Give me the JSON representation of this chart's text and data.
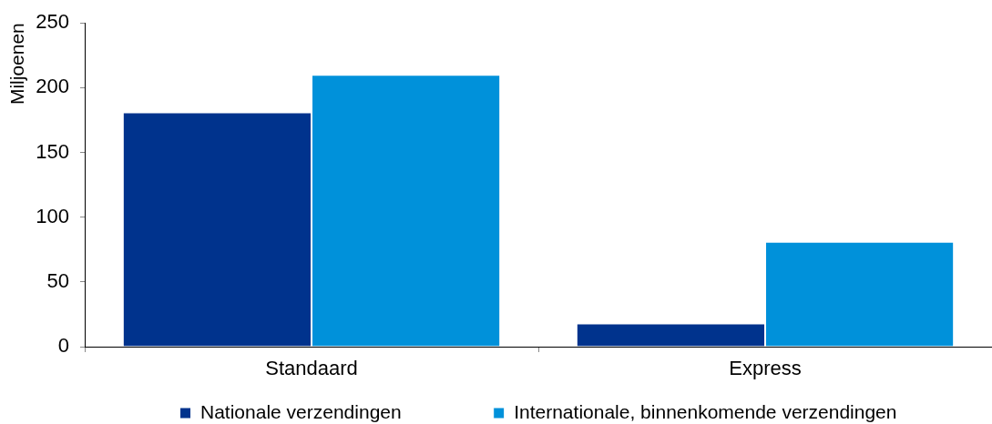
{
  "chart_data": {
    "type": "bar",
    "categories": [
      "Standaard",
      "Express"
    ],
    "ylabel": "Miljoenen",
    "series": [
      {
        "name": "Nationale verzendingen",
        "color": "#00338d",
        "values": [
          181,
          18
        ]
      },
      {
        "name": "Internationale, binnenkomende verzendingen",
        "color": "#0091da",
        "values": [
          210,
          81
        ]
      }
    ],
    "ylim": [
      0,
      250
    ],
    "yticks": [
      0,
      50,
      100,
      150,
      200,
      250
    ],
    "legend": "bottom"
  }
}
